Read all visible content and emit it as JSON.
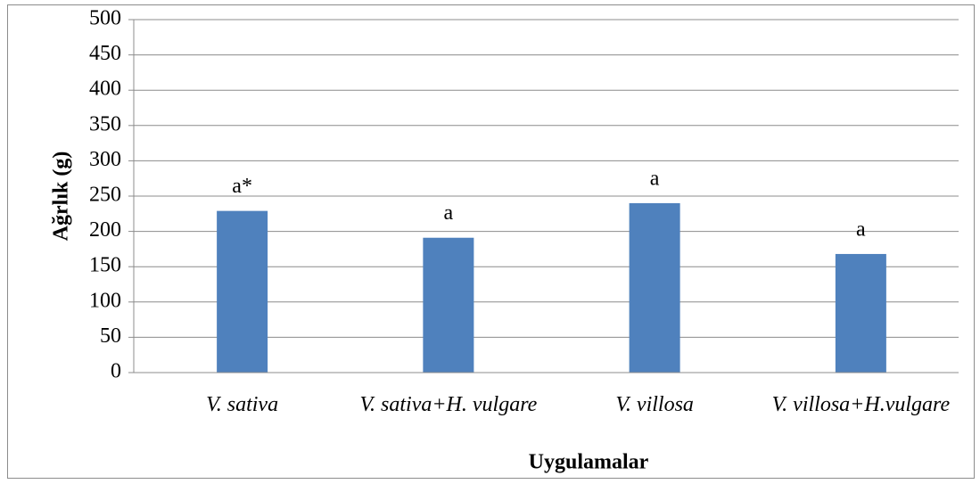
{
  "chart_data": {
    "type": "bar",
    "x_label": "Uygulamalar",
    "y_label": "Ağrlık (g)",
    "categories": [
      "V. sativa",
      "V. sativa+H. vulgare",
      "V. villosa",
      "V. villosa+H.vulgare"
    ],
    "values": [
      229,
      191,
      240,
      168
    ],
    "annotations": [
      "a*",
      "a",
      "a",
      "a"
    ],
    "color": "#4f81bd",
    "ylim": [
      0,
      500
    ],
    "yticks": [
      0,
      50,
      100,
      150,
      200,
      250,
      300,
      350,
      400,
      450,
      500
    ],
    "grid": true
  }
}
